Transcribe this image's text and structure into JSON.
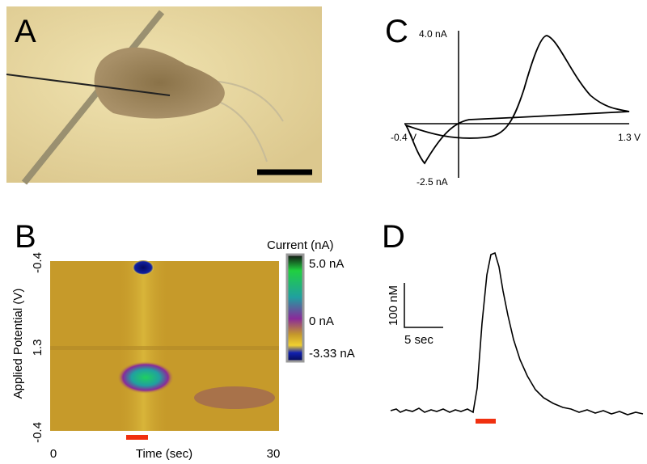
{
  "panels": {
    "a": {
      "label": "A"
    },
    "b": {
      "label": "B",
      "colorbar_title": "Current (nA)",
      "colorbar_ticks": [
        "5.0 nA",
        "0 nA",
        "-3.33 nA"
      ],
      "y_axis_title": "Applied Potential (V)",
      "y_ticks": [
        "-0.4",
        "1.3",
        "-0.4"
      ],
      "x_axis_title": "Time (sec)",
      "x_ticks": [
        "0",
        "30"
      ]
    },
    "c": {
      "label": "C",
      "labels": [
        "4.0 nA",
        "-2.5 nA",
        "-0.4 V",
        "1.3 V"
      ]
    },
    "d": {
      "label": "D",
      "scale_y": "100 nM",
      "scale_x": "5 sec"
    }
  }
}
